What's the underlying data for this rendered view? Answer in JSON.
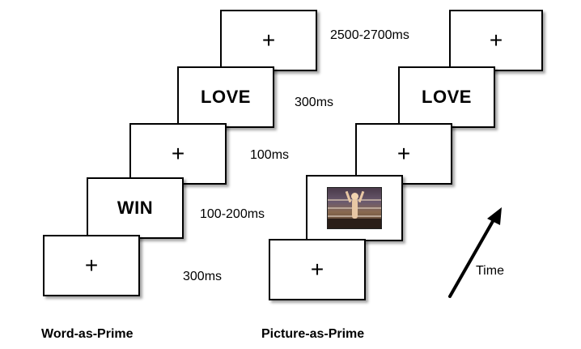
{
  "fixation_symbol": "+",
  "left_sequence": {
    "caption": "Word-as-Prime",
    "frames": [
      {
        "content_type": "fixation"
      },
      {
        "content_type": "word",
        "text": "WIN"
      },
      {
        "content_type": "fixation"
      },
      {
        "content_type": "word",
        "text": "LOVE"
      },
      {
        "content_type": "fixation"
      }
    ]
  },
  "right_sequence": {
    "caption": "Picture-as-Prime",
    "frames": [
      {
        "content_type": "fixation"
      },
      {
        "content_type": "picture"
      },
      {
        "content_type": "fixation"
      },
      {
        "content_type": "word",
        "text": "LOVE"
      },
      {
        "content_type": "fixation"
      }
    ]
  },
  "durations": [
    "300ms",
    "100-200ms",
    "100ms",
    "300ms",
    "2500-2700ms"
  ],
  "time_label": "Time",
  "colors": {
    "stroke": "#000000",
    "background": "#ffffff"
  }
}
